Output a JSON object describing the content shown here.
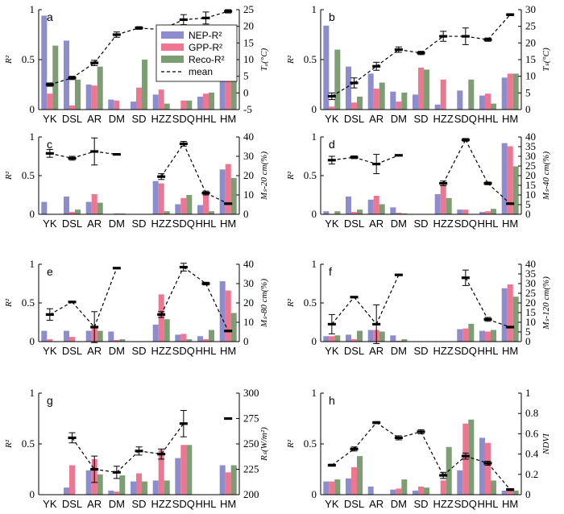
{
  "colors": {
    "nep": "#8c8cce",
    "gpp": "#ee7691",
    "reco": "#7c9e72",
    "mean": "#000000"
  },
  "categories": [
    "YK",
    "DSL",
    "AR",
    "DM",
    "SD",
    "HZZ",
    "SDQ",
    "HHL",
    "HM"
  ],
  "legend": {
    "labels": [
      "NEP-R²",
      "GPP-R²",
      "Reco-R²",
      "mean"
    ]
  },
  "chart_data": [
    {
      "panel": "a",
      "type": "bar",
      "ylabel": "R²",
      "ylim": [
        0,
        1
      ],
      "yticks": [
        "0",
        "0.5",
        "1"
      ],
      "y2label": "Tₐ(°C)",
      "y2lim": [
        -5,
        25
      ],
      "y2ticks": [
        "-5",
        "0",
        "5",
        "10",
        "15",
        "20",
        "25"
      ],
      "series": [
        {
          "name": "NEP-R²",
          "values": [
            0.94,
            0.69,
            0.25,
            0.1,
            0.08,
            0.15,
            0.0,
            0.13,
            0.38
          ]
        },
        {
          "name": "GPP-R²",
          "values": [
            0.16,
            0.04,
            0.24,
            0.09,
            0.22,
            0.2,
            0.09,
            0.16,
            0.41
          ]
        },
        {
          "name": "Reco-R²",
          "values": [
            0.64,
            0.3,
            0.43,
            0.0,
            0.5,
            0.06,
            0.09,
            0.17,
            0.32
          ]
        }
      ],
      "mean": [
        2.5,
        4.5,
        9.0,
        17.5,
        19.5,
        19.0,
        22.0,
        22.5,
        24.5
      ],
      "err": [
        0.5,
        0.5,
        0.8,
        0.8,
        0.4,
        0.4,
        1.5,
        1.8,
        0.5
      ]
    },
    {
      "panel": "b",
      "type": "bar",
      "ylabel": "R²",
      "ylim": [
        0,
        1
      ],
      "yticks": [
        "0",
        "0.5",
        "1"
      ],
      "y2label": "Tₛ(°C)",
      "y2lim": [
        0,
        30
      ],
      "y2ticks": [
        "0",
        "5",
        "10",
        "15",
        "20",
        "25",
        "30"
      ],
      "series": [
        {
          "name": "NEP-R²",
          "values": [
            0.84,
            0.43,
            0.36,
            0.18,
            0.15,
            0.05,
            0.19,
            0.14,
            0.32
          ]
        },
        {
          "name": "GPP-R²",
          "values": [
            0.03,
            0.07,
            0.21,
            0.08,
            0.42,
            0.3,
            0.0,
            0.16,
            0.36
          ]
        },
        {
          "name": "Reco-R²",
          "values": [
            0.6,
            0.13,
            0.27,
            0.17,
            0.4,
            0.0,
            0.3,
            0.06,
            0.36
          ]
        }
      ],
      "mean": [
        4.0,
        8.0,
        13.0,
        18.0,
        17.0,
        22.0,
        22.0,
        21.0,
        28.5
      ],
      "err": [
        1.0,
        1.5,
        1.2,
        0.8,
        0.5,
        1.5,
        2.5,
        0.5,
        0.3
      ]
    },
    {
      "panel": "c",
      "type": "bar",
      "ylabel": "R²",
      "ylim": [
        0,
        1
      ],
      "yticks": [
        "0",
        "0.5",
        "1"
      ],
      "y2label": "Mₛ-20 cm(%)",
      "y2lim": [
        0,
        40
      ],
      "y2ticks": [
        "0",
        "10",
        "20",
        "30",
        "40"
      ],
      "series": [
        {
          "name": "NEP-R²",
          "values": [
            0.16,
            0.23,
            0.16,
            0.0,
            0.0,
            0.43,
            0.13,
            0.12,
            0.58
          ]
        },
        {
          "name": "GPP-R²",
          "values": [
            0.0,
            0.03,
            0.26,
            0.01,
            0.0,
            0.4,
            0.21,
            0.26,
            0.65
          ]
        },
        {
          "name": "Reco-R²",
          "values": [
            0.0,
            0.06,
            0.15,
            0.01,
            0.0,
            0.04,
            0.25,
            0.04,
            0.47
          ]
        }
      ],
      "mean": [
        31.5,
        29.0,
        32.5,
        31.0,
        null,
        19.5,
        36.5,
        11.0,
        5.5
      ],
      "err": [
        2.0,
        1.0,
        7.0,
        0.3,
        null,
        1.5,
        1.2,
        1.0,
        0.3
      ]
    },
    {
      "panel": "d",
      "type": "bar",
      "ylabel": "R²",
      "ylim": [
        0,
        1
      ],
      "yticks": [
        "0",
        "0.5",
        "1"
      ],
      "y2label": "Mₛ-40 cm(%)",
      "y2lim": [
        0,
        40
      ],
      "y2ticks": [
        "0",
        "5",
        "10",
        "15",
        "20",
        "25",
        "30",
        "35",
        "40"
      ],
      "series": [
        {
          "name": "NEP-R²",
          "values": [
            0.04,
            0.23,
            0.19,
            0.09,
            0.0,
            0.26,
            0.06,
            0.03,
            0.92
          ]
        },
        {
          "name": "GPP-R²",
          "values": [
            0.0,
            0.03,
            0.24,
            0.02,
            0.0,
            0.38,
            0.06,
            0.04,
            0.88
          ]
        },
        {
          "name": "Reco-R²",
          "values": [
            0.04,
            0.06,
            0.13,
            0.01,
            0.0,
            0.21,
            0.0,
            0.07,
            0.62
          ]
        }
      ],
      "mean": [
        28.0,
        29.5,
        26.0,
        30.5,
        null,
        16.0,
        38.5,
        16.0,
        5.5
      ],
      "err": [
        2.0,
        0.7,
        5.0,
        0.3,
        null,
        1.2,
        0.7,
        0.7,
        0.3
      ]
    },
    {
      "panel": "e",
      "type": "bar",
      "ylabel": "R²",
      "ylim": [
        0,
        1
      ],
      "yticks": [
        "0",
        "0.5",
        "1"
      ],
      "y2label": "Mₛ-80 cm(%)",
      "y2lim": [
        0,
        40
      ],
      "y2ticks": [
        "0",
        "10",
        "20",
        "30",
        "40"
      ],
      "series": [
        {
          "name": "NEP-R²",
          "values": [
            0.14,
            0.14,
            0.14,
            0.13,
            0.0,
            0.22,
            0.09,
            0.07,
            0.78
          ]
        },
        {
          "name": "GPP-R²",
          "values": [
            0.03,
            0.06,
            0.18,
            0.02,
            0.0,
            0.61,
            0.1,
            0.03,
            0.66
          ]
        },
        {
          "name": "Reco-R²",
          "values": [
            0.0,
            0.0,
            0.14,
            0.03,
            0.0,
            0.29,
            0.03,
            0.15,
            0.37
          ]
        }
      ],
      "mean": [
        14.0,
        20.5,
        7.5,
        38.0,
        null,
        14.0,
        38.5,
        30.0,
        5.5
      ],
      "err": [
        3.0,
        0.3,
        8.0,
        0.3,
        null,
        1.5,
        2.0,
        0.7,
        0.3
      ]
    },
    {
      "panel": "f",
      "type": "bar",
      "ylabel": "R²",
      "ylim": [
        0,
        1
      ],
      "yticks": [
        "0",
        "0.5",
        "1"
      ],
      "y2label": "Mₛ-120 cm(%)",
      "y2lim": [
        0,
        40
      ],
      "y2ticks": [
        "0",
        "5",
        "10",
        "15",
        "20",
        "25",
        "30",
        "35",
        "40"
      ],
      "series": [
        {
          "name": "NEP-R²",
          "values": [
            0.07,
            0.09,
            0.15,
            0.08,
            0.0,
            0.0,
            0.16,
            0.14,
            0.69
          ]
        },
        {
          "name": "GPP-R²",
          "values": [
            0.07,
            0.03,
            0.15,
            0.01,
            0.0,
            0.0,
            0.17,
            0.13,
            0.74
          ]
        },
        {
          "name": "Reco-R²",
          "values": [
            0.08,
            0.14,
            0.13,
            0.03,
            0.0,
            0.0,
            0.23,
            0.15,
            0.58
          ]
        }
      ],
      "mean": [
        9.0,
        23.0,
        9.0,
        34.5,
        null,
        null,
        33.0,
        11.5,
        7.5
      ],
      "err": [
        5.0,
        0.3,
        10.0,
        0.3,
        null,
        null,
        4.0,
        1.0,
        0.3
      ]
    },
    {
      "panel": "g",
      "type": "bar",
      "ylabel": "R²",
      "ylim": [
        0,
        1
      ],
      "yticks": [
        "0",
        "0.5",
        "1"
      ],
      "y2label": "Rₛ(W/m²)",
      "y2lim": [
        200,
        300
      ],
      "y2ticks": [
        "200",
        "225",
        "250",
        "275",
        "300"
      ],
      "series": [
        {
          "name": "NEP-R²",
          "values": [
            0.0,
            0.07,
            0.24,
            0.04,
            0.13,
            0.14,
            0.36,
            0.0,
            0.29
          ]
        },
        {
          "name": "GPP-R²",
          "values": [
            0.0,
            0.29,
            0.35,
            0.03,
            0.21,
            0.44,
            0.49,
            0.0,
            0.22
          ]
        },
        {
          "name": "Reco-R²",
          "values": [
            0.0,
            0.0,
            0.2,
            0.19,
            0.13,
            0.14,
            0.49,
            0.0,
            0.29
          ]
        }
      ],
      "mean": [
        null,
        256,
        225,
        222,
        243,
        240,
        270,
        null,
        275
      ],
      "err": [
        null,
        5,
        13,
        6,
        4,
        5,
        13,
        null,
        0.5
      ]
    },
    {
      "panel": "h",
      "type": "bar",
      "ylabel": "R²",
      "ylim": [
        0,
        1
      ],
      "yticks": [
        "0",
        "0.5",
        "1"
      ],
      "y2label": "NDVI",
      "y2lim": [
        0,
        1
      ],
      "y2ticks": [
        "0",
        "0.2",
        "0.4",
        "0.6",
        "0.8",
        "1"
      ],
      "series": [
        {
          "name": "NEP-R²",
          "values": [
            0.13,
            0.16,
            0.08,
            0.05,
            0.04,
            0.0,
            0.24,
            0.56,
            0.04
          ]
        },
        {
          "name": "GPP-R²",
          "values": [
            0.13,
            0.27,
            0.0,
            0.06,
            0.08,
            0.14,
            0.7,
            0.51,
            0.05
          ]
        },
        {
          "name": "Reco-R²",
          "values": [
            0.15,
            0.38,
            0.0,
            0.15,
            0.07,
            0.47,
            0.74,
            0.14,
            0.04
          ]
        }
      ],
      "mean": [
        0.29,
        0.45,
        0.71,
        0.56,
        0.62,
        0.19,
        0.38,
        0.31,
        0.05
      ],
      "err": [
        0.01,
        0.02,
        0.01,
        0.02,
        0.02,
        0.03,
        0.03,
        0.02,
        0.01
      ]
    }
  ]
}
